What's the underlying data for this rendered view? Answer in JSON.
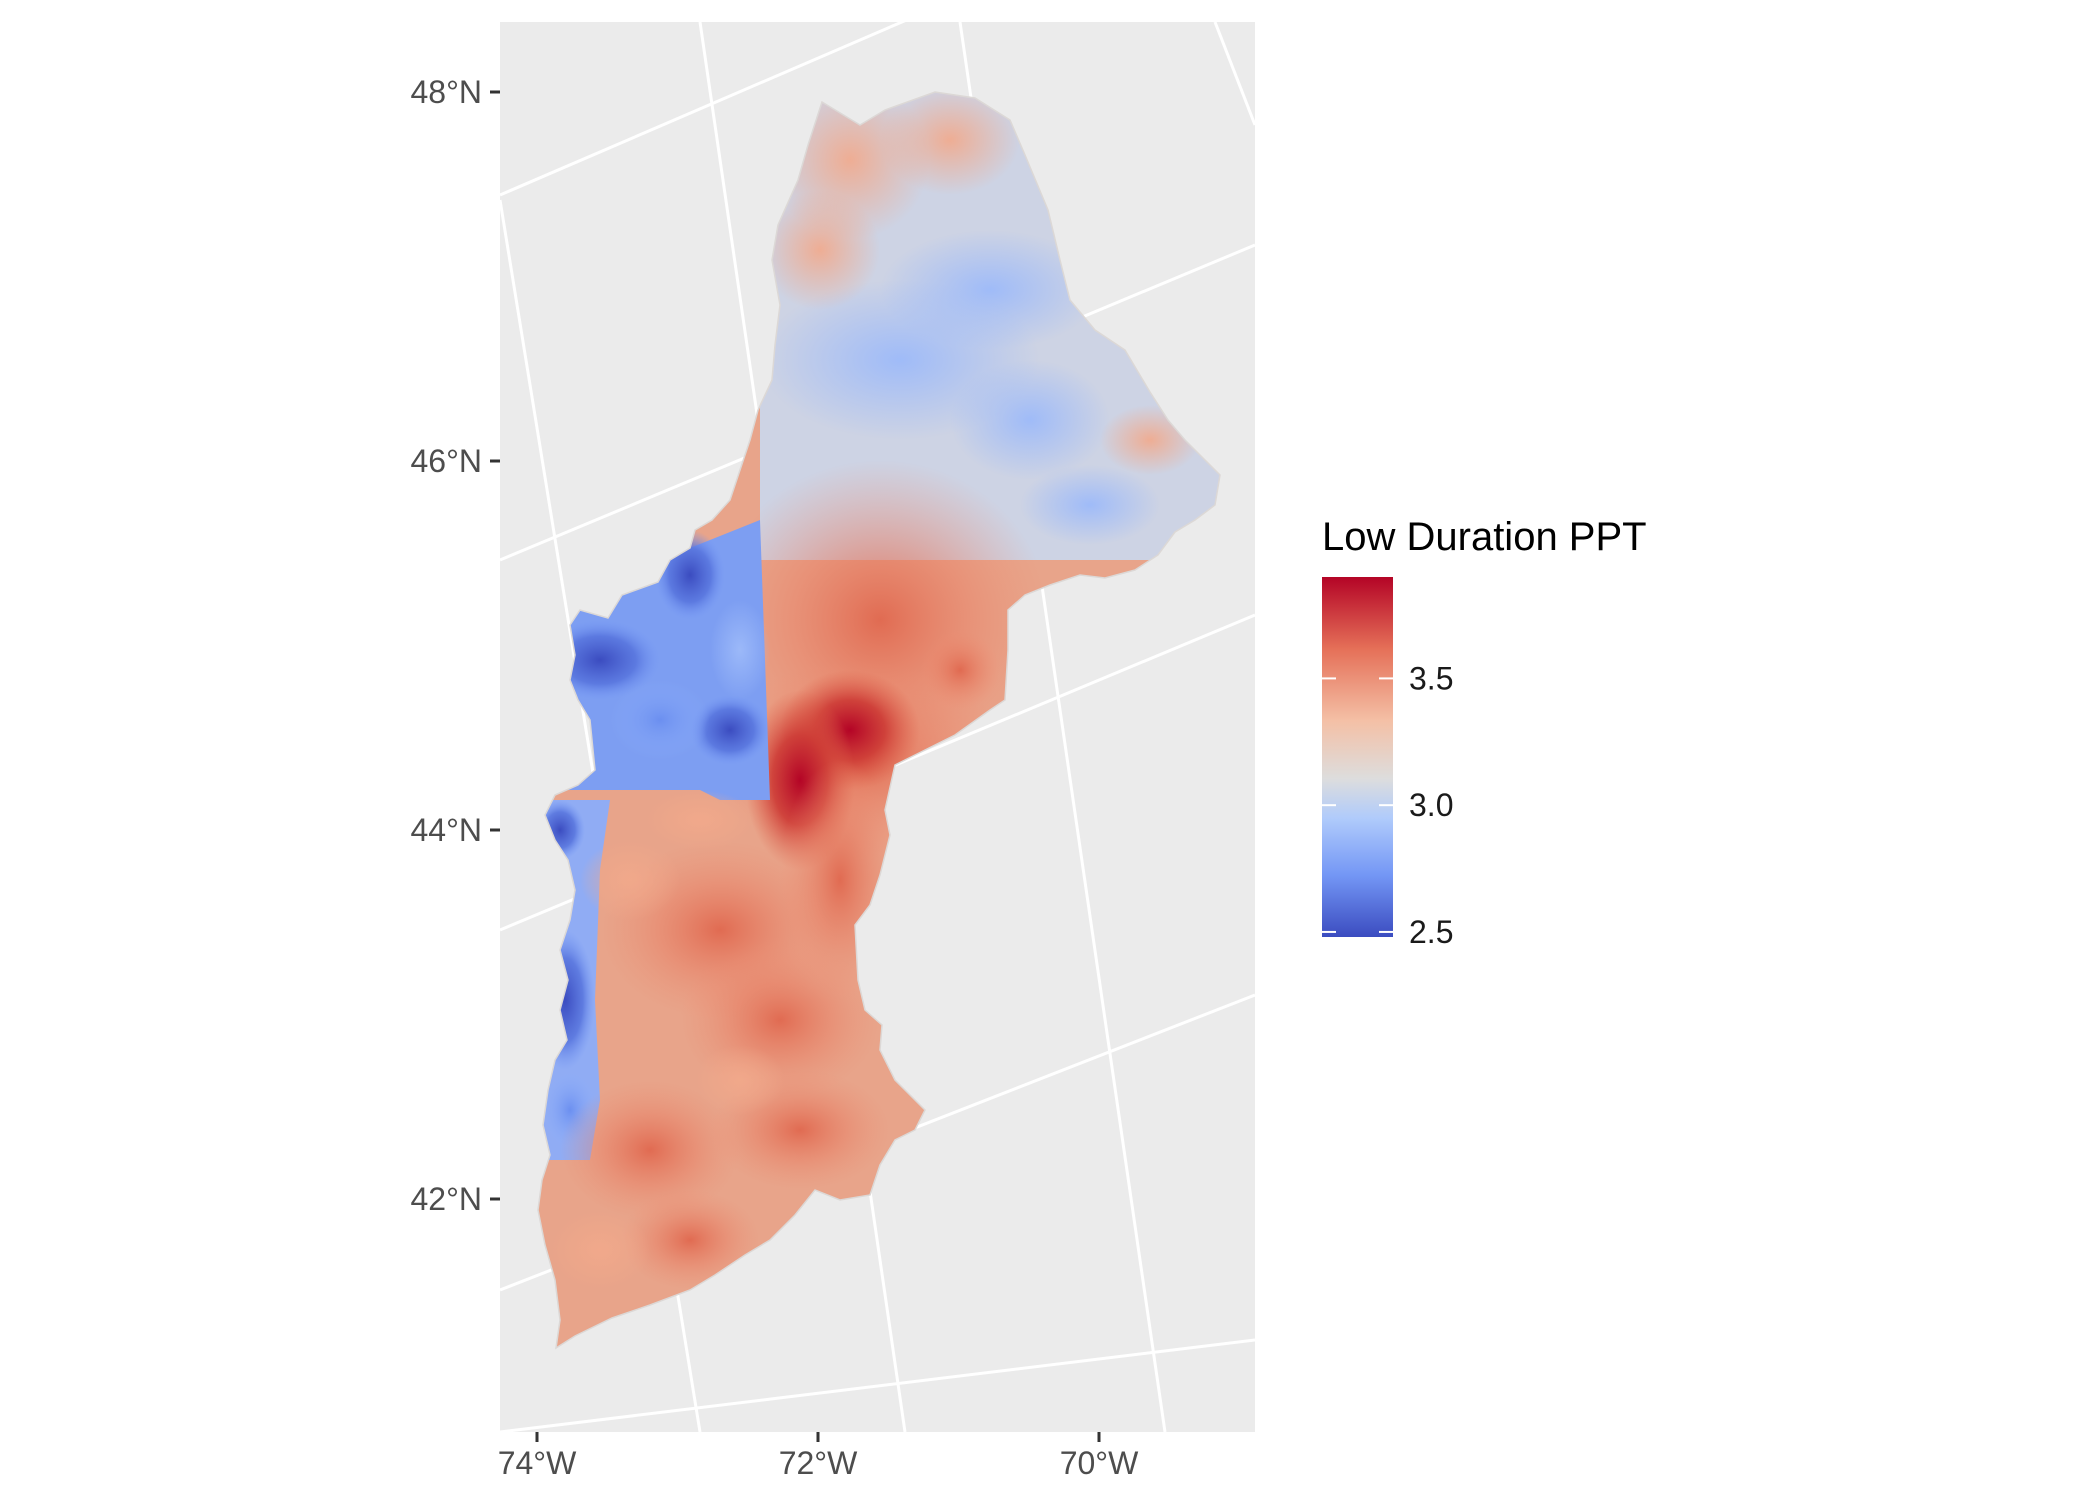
{
  "chart_data": {
    "type": "heatmap",
    "subtype": "choropleth-map",
    "title": "",
    "xlabel": "",
    "ylabel": "",
    "grid": true,
    "projection": "conic (graticule lines tilted)",
    "y_ticks": [
      {
        "value": 48,
        "label": "48°N"
      },
      {
        "value": 46,
        "label": "46°N"
      },
      {
        "value": 44,
        "label": "44°N"
      },
      {
        "value": 42,
        "label": "42°N"
      }
    ],
    "x_ticks": [
      {
        "value": -74,
        "label": "74°W"
      },
      {
        "value": -72,
        "label": "72°W"
      },
      {
        "value": -70,
        "label": "70°W"
      }
    ],
    "legend": {
      "title": "Low Duration PPT",
      "placement": "right",
      "range": [
        2.48,
        3.9
      ],
      "ticks": [
        {
          "value": 3.5,
          "label": "3.5"
        },
        {
          "value": 3.0,
          "label": "3.0"
        },
        {
          "value": 2.5,
          "label": "2.5"
        }
      ],
      "colors": [
        "#3b4cc0",
        "#7396f5",
        "#b0cbfb",
        "#dddddd",
        "#f4c0a6",
        "#e57058",
        "#b40426"
      ]
    },
    "colors": {
      "panel_background": "#ebebeb",
      "grid": "#ffffff",
      "low": "#3b4cc0",
      "mid": "#dddddd",
      "high": "#b40426"
    },
    "region_values": [
      {
        "area": "northern tip",
        "value": 3.25
      },
      {
        "area": "north-central",
        "value": 2.95
      },
      {
        "area": "northeast lobe",
        "value": 3.05
      },
      {
        "area": "northwest basin",
        "value": 2.6
      },
      {
        "area": "central-west blue strip",
        "value": 2.7
      },
      {
        "area": "central red zone",
        "value": 3.6
      },
      {
        "area": "central peak",
        "value": 3.85
      },
      {
        "area": "southern interior",
        "value": 3.45
      },
      {
        "area": "southwest edge",
        "value": 2.8
      },
      {
        "area": "southern coast",
        "value": 3.3
      }
    ]
  }
}
